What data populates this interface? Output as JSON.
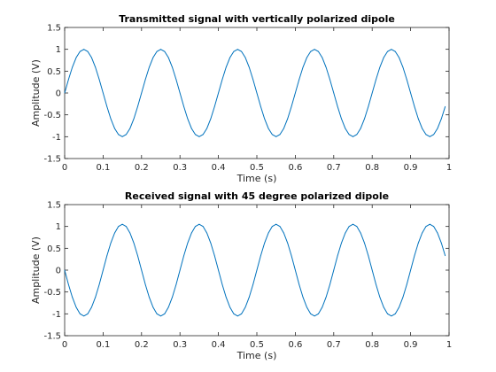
{
  "chart_data": [
    {
      "type": "line",
      "title": "Transmitted signal with vertically polarized dipole",
      "xlabel": "Time (s)",
      "ylabel": "Amplitude (V)",
      "xlim": [
        0,
        1
      ],
      "ylim": [
        -1.5,
        1.5
      ],
      "xticks": [
        "0",
        "0.1",
        "0.2",
        "0.3",
        "0.4",
        "0.5",
        "0.6",
        "0.7",
        "0.8",
        "0.9",
        "1"
      ],
      "yticks": [
        "-1.5",
        "-1",
        "-0.5",
        "0",
        "0.5",
        "1",
        "1.5"
      ],
      "grid": false,
      "color": "#0072BD",
      "series": [
        {
          "x": [
            0,
            0.01,
            0.02,
            0.03,
            0.04,
            0.05,
            0.06,
            0.07,
            0.08,
            0.09,
            0.1,
            0.11,
            0.12,
            0.13,
            0.14,
            0.15,
            0.16,
            0.17,
            0.18,
            0.19,
            0.2,
            0.21,
            0.22,
            0.23,
            0.24,
            0.25,
            0.26,
            0.27,
            0.28,
            0.29,
            0.3,
            0.31,
            0.32,
            0.33,
            0.34,
            0.35,
            0.36,
            0.37,
            0.38,
            0.39,
            0.4,
            0.41,
            0.42,
            0.43,
            0.44,
            0.45,
            0.46,
            0.47,
            0.48,
            0.49,
            0.5,
            0.51,
            0.52,
            0.53,
            0.54,
            0.55,
            0.56,
            0.57,
            0.58,
            0.59,
            0.6,
            0.61,
            0.62,
            0.63,
            0.64,
            0.65,
            0.66,
            0.67,
            0.68,
            0.69,
            0.7,
            0.71,
            0.72,
            0.73,
            0.74,
            0.75,
            0.76,
            0.77,
            0.78,
            0.79,
            0.8,
            0.81,
            0.82,
            0.83,
            0.84,
            0.85,
            0.86,
            0.87,
            0.88,
            0.89,
            0.9,
            0.91,
            0.92,
            0.93,
            0.94,
            0.95,
            0.96,
            0.97,
            0.98,
            0.99
          ],
          "y": [
            0,
            0.31,
            0.59,
            0.81,
            0.95,
            1,
            0.95,
            0.81,
            0.59,
            0.31,
            0,
            -0.31,
            -0.59,
            -0.81,
            -0.95,
            -1,
            -0.95,
            -0.81,
            -0.59,
            -0.31,
            0,
            0.31,
            0.59,
            0.81,
            0.95,
            1,
            0.95,
            0.81,
            0.59,
            0.31,
            0,
            -0.31,
            -0.59,
            -0.81,
            -0.95,
            -1,
            -0.95,
            -0.81,
            -0.59,
            -0.31,
            0,
            0.31,
            0.59,
            0.81,
            0.95,
            1,
            0.95,
            0.81,
            0.59,
            0.31,
            0,
            -0.31,
            -0.59,
            -0.81,
            -0.95,
            -1,
            -0.95,
            -0.81,
            -0.59,
            -0.31,
            0,
            0.31,
            0.59,
            0.81,
            0.95,
            1,
            0.95,
            0.81,
            0.59,
            0.31,
            0,
            -0.31,
            -0.59,
            -0.81,
            -0.95,
            -1,
            -0.95,
            -0.81,
            -0.59,
            -0.31,
            0,
            0.31,
            0.59,
            0.81,
            0.95,
            1,
            0.95,
            0.81,
            0.59,
            0.31,
            0,
            -0.31,
            -0.59,
            -0.81,
            -0.95,
            -1,
            -0.95,
            -0.81,
            -0.59,
            -0.31
          ]
        }
      ]
    },
    {
      "type": "line",
      "title": "Received signal with 45 degree polarized dipole",
      "xlabel": "Time (s)",
      "ylabel": "Amplitude (V)",
      "xlim": [
        0,
        1
      ],
      "ylim": [
        -1.5,
        1.5
      ],
      "xticks": [
        "0",
        "0.1",
        "0.2",
        "0.3",
        "0.4",
        "0.5",
        "0.6",
        "0.7",
        "0.8",
        "0.9",
        "1"
      ],
      "yticks": [
        "-1.5",
        "-1",
        "-0.5",
        "0",
        "0.5",
        "1",
        "1.5"
      ],
      "grid": false,
      "color": "#0072BD",
      "series": [
        {
          "x": [
            0,
            0.01,
            0.02,
            0.03,
            0.04,
            0.05,
            0.06,
            0.07,
            0.08,
            0.09,
            0.1,
            0.11,
            0.12,
            0.13,
            0.14,
            0.15,
            0.16,
            0.17,
            0.18,
            0.19,
            0.2,
            0.21,
            0.22,
            0.23,
            0.24,
            0.25,
            0.26,
            0.27,
            0.28,
            0.29,
            0.3,
            0.31,
            0.32,
            0.33,
            0.34,
            0.35,
            0.36,
            0.37,
            0.38,
            0.39,
            0.4,
            0.41,
            0.42,
            0.43,
            0.44,
            0.45,
            0.46,
            0.47,
            0.48,
            0.49,
            0.5,
            0.51,
            0.52,
            0.53,
            0.54,
            0.55,
            0.56,
            0.57,
            0.58,
            0.59,
            0.6,
            0.61,
            0.62,
            0.63,
            0.64,
            0.65,
            0.66,
            0.67,
            0.68,
            0.69,
            0.7,
            0.71,
            0.72,
            0.73,
            0.74,
            0.75,
            0.76,
            0.77,
            0.78,
            0.79,
            0.8,
            0.81,
            0.82,
            0.83,
            0.84,
            0.85,
            0.86,
            0.87,
            0.88,
            0.89,
            0.9,
            0.91,
            0.92,
            0.93,
            0.94,
            0.95,
            0.96,
            0.97,
            0.98,
            0.99
          ],
          "y": [
            0,
            -0.33,
            -0.62,
            -0.85,
            -1,
            -1.05,
            -1,
            -0.85,
            -0.62,
            -0.33,
            0,
            0.33,
            0.62,
            0.85,
            1,
            1.05,
            1,
            0.85,
            0.62,
            0.33,
            0,
            -0.33,
            -0.62,
            -0.85,
            -1,
            -1.05,
            -1,
            -0.85,
            -0.62,
            -0.33,
            0,
            0.33,
            0.62,
            0.85,
            1,
            1.05,
            1,
            0.85,
            0.62,
            0.33,
            0,
            -0.33,
            -0.62,
            -0.85,
            -1,
            -1.05,
            -1,
            -0.85,
            -0.62,
            -0.33,
            0,
            0.33,
            0.62,
            0.85,
            1,
            1.05,
            1,
            0.85,
            0.62,
            0.33,
            0,
            -0.33,
            -0.62,
            -0.85,
            -1,
            -1.05,
            -1,
            -0.85,
            -0.62,
            -0.33,
            0,
            0.33,
            0.62,
            0.85,
            1,
            1.05,
            1,
            0.85,
            0.62,
            0.33,
            0,
            -0.33,
            -0.62,
            -0.85,
            -1,
            -1.05,
            -1,
            -0.85,
            -0.62,
            -0.33,
            0,
            0.33,
            0.62,
            0.85,
            1,
            1.05,
            1,
            0.85,
            0.62,
            0.33
          ]
        }
      ]
    }
  ]
}
